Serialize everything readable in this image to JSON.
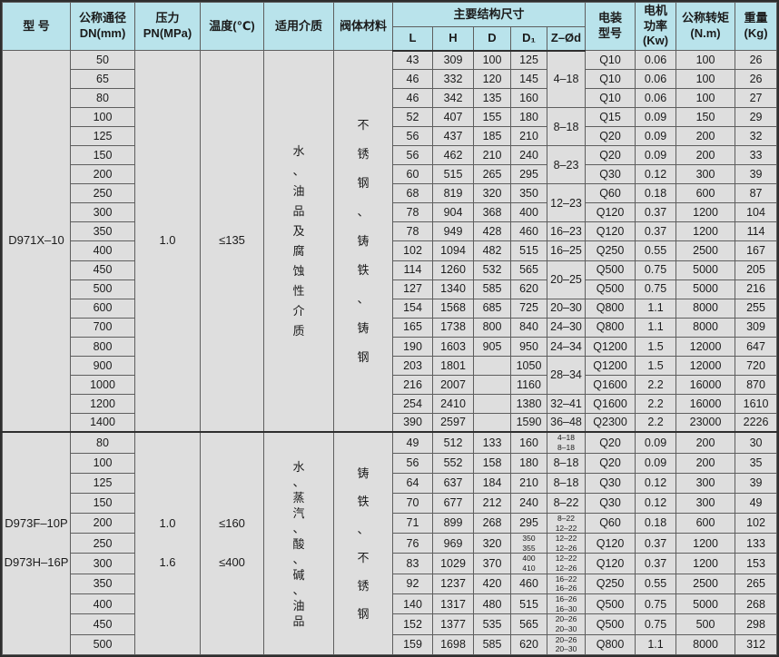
{
  "colors": {
    "header_bg": "#b9e3eb",
    "row_bg": "#dedede",
    "grid": "#5e5e5e",
    "frame": "#2e2e2e",
    "text": "#1b1b1b"
  },
  "table": {
    "header": {
      "model": "型  号",
      "dn": "公称通径\nDN(mm)",
      "pn": "压力\nPN(MPa)",
      "temp": "温度(℃)",
      "medium": "适用介质",
      "material": "阀体材料",
      "dims_group": "主要结构尺寸",
      "dims": [
        "L",
        "H",
        "D",
        "D₁",
        "Z–Ød"
      ],
      "actuator": "电装\n型号",
      "power": "电机\n功率\n(Kw)",
      "torque": "公称转矩\n(N.m)",
      "weight": "重量\n(Kg)"
    },
    "sections": [
      {
        "model": "D971X–10",
        "pressure": "1.0",
        "temperature": "≤135",
        "medium": "水、油品及腐蚀性介质",
        "material": "不锈钢、铸铁、铸钢",
        "rows": [
          {
            "dn": "50",
            "L": "43",
            "H": "309",
            "D": "100",
            "D1": "125",
            "zd": "4–18",
            "zd_span": 3,
            "act": "Q10",
            "kw": "0.06",
            "nm": "100",
            "kg": "26"
          },
          {
            "dn": "65",
            "L": "46",
            "H": "332",
            "D": "120",
            "D1": "145",
            "act": "Q10",
            "kw": "0.06",
            "nm": "100",
            "kg": "26"
          },
          {
            "dn": "80",
            "L": "46",
            "H": "342",
            "D": "135",
            "D1": "160",
            "act": "Q10",
            "kw": "0.06",
            "nm": "100",
            "kg": "27"
          },
          {
            "dn": "100",
            "L": "52",
            "H": "407",
            "D": "155",
            "D1": "180",
            "zd": "8–18",
            "zd_span": 2,
            "act": "Q15",
            "kw": "0.09",
            "nm": "150",
            "kg": "29"
          },
          {
            "dn": "125",
            "L": "56",
            "H": "437",
            "D": "185",
            "D1": "210",
            "act": "Q20",
            "kw": "0.09",
            "nm": "200",
            "kg": "32"
          },
          {
            "dn": "150",
            "L": "56",
            "H": "462",
            "D": "210",
            "D1": "240",
            "zd": "8–23",
            "zd_span": 2,
            "act": "Q20",
            "kw": "0.09",
            "nm": "200",
            "kg": "33"
          },
          {
            "dn": "200",
            "L": "60",
            "H": "515",
            "D": "265",
            "D1": "295",
            "act": "Q30",
            "kw": "0.12",
            "nm": "300",
            "kg": "39"
          },
          {
            "dn": "250",
            "L": "68",
            "H": "819",
            "D": "320",
            "D1": "350",
            "zd": "12–23",
            "zd_span": 2,
            "act": "Q60",
            "kw": "0.18",
            "nm": "600",
            "kg": "87"
          },
          {
            "dn": "300",
            "L": "78",
            "H": "904",
            "D": "368",
            "D1": "400",
            "act": "Q120",
            "kw": "0.37",
            "nm": "1200",
            "kg": "104"
          },
          {
            "dn": "350",
            "L": "78",
            "H": "949",
            "D": "428",
            "D1": "460",
            "zd": "16–23",
            "zd_span": 1,
            "act": "Q120",
            "kw": "0.37",
            "nm": "1200",
            "kg": "114"
          },
          {
            "dn": "400",
            "L": "102",
            "H": "1094",
            "D": "482",
            "D1": "515",
            "zd": "16–25",
            "zd_span": 1,
            "act": "Q250",
            "kw": "0.55",
            "nm": "2500",
            "kg": "167"
          },
          {
            "dn": "450",
            "L": "114",
            "H": "1260",
            "D": "532",
            "D1": "565",
            "zd": "20–25",
            "zd_span": 2,
            "act": "Q500",
            "kw": "0.75",
            "nm": "5000",
            "kg": "205"
          },
          {
            "dn": "500",
            "L": "127",
            "H": "1340",
            "D": "585",
            "D1": "620",
            "act": "Q500",
            "kw": "0.75",
            "nm": "5000",
            "kg": "216"
          },
          {
            "dn": "600",
            "L": "154",
            "H": "1568",
            "D": "685",
            "D1": "725",
            "zd": "20–30",
            "zd_span": 1,
            "act": "Q800",
            "kw": "1.1",
            "nm": "8000",
            "kg": "255"
          },
          {
            "dn": "700",
            "L": "165",
            "H": "1738",
            "D": "800",
            "D1": "840",
            "zd": "24–30",
            "zd_span": 1,
            "act": "Q800",
            "kw": "1.1",
            "nm": "8000",
            "kg": "309"
          },
          {
            "dn": "800",
            "L": "190",
            "H": "1603",
            "D": "905",
            "D1": "950",
            "zd": "24–34",
            "zd_span": 1,
            "act": "Q1200",
            "kw": "1.5",
            "nm": "12000",
            "kg": "647"
          },
          {
            "dn": "900",
            "L": "203",
            "H": "1801",
            "D": "",
            "D1": "1050",
            "zd": "28–34",
            "zd_span": 2,
            "act": "Q1200",
            "kw": "1.5",
            "nm": "12000",
            "kg": "720"
          },
          {
            "dn": "1000",
            "L": "216",
            "H": "2007",
            "D": "",
            "D1": "1160",
            "act": "Q1600",
            "kw": "2.2",
            "nm": "16000",
            "kg": "870"
          },
          {
            "dn": "1200",
            "L": "254",
            "H": "2410",
            "D": "",
            "D1": "1380",
            "zd": "32–41",
            "zd_span": 1,
            "act": "Q1600",
            "kw": "2.2",
            "nm": "16000",
            "kg": "1610"
          },
          {
            "dn": "1400",
            "L": "390",
            "H": "2597",
            "D": "",
            "D1": "1590",
            "zd": "36–48",
            "zd_span": 1,
            "act": "Q2300",
            "kw": "2.2",
            "nm": "23000",
            "kg": "2226"
          }
        ]
      },
      {
        "model": "D973F–10P\nD973H–16P",
        "pressure": "1.0\n1.6",
        "temperature": "≤160\n≤400",
        "medium": "水、蒸汽、酸、碱、油品",
        "material": "铸铁、不锈钢",
        "rows": [
          {
            "dn": "80",
            "L": "49",
            "H": "512",
            "D": "133",
            "D1": "160",
            "zd": "4–18\n8–18",
            "zd_span": 1,
            "act": "Q20",
            "kw": "0.09",
            "nm": "200",
            "kg": "30"
          },
          {
            "dn": "100",
            "L": "56",
            "H": "552",
            "D": "158",
            "D1": "180",
            "zd": "8–18",
            "zd_span": 1,
            "act": "Q20",
            "kw": "0.09",
            "nm": "200",
            "kg": "35"
          },
          {
            "dn": "125",
            "L": "64",
            "H": "637",
            "D": "184",
            "D1": "210",
            "zd": "8–18",
            "zd_span": 1,
            "act": "Q30",
            "kw": "0.12",
            "nm": "300",
            "kg": "39"
          },
          {
            "dn": "150",
            "L": "70",
            "H": "677",
            "D": "212",
            "D1": "240",
            "zd": "8–22",
            "zd_span": 1,
            "act": "Q30",
            "kw": "0.12",
            "nm": "300",
            "kg": "49"
          },
          {
            "dn": "200",
            "L": "71",
            "H": "899",
            "D": "268",
            "D1": "295",
            "zd": "8–22\n12–22",
            "zd_span": 1,
            "act": "Q60",
            "kw": "0.18",
            "nm": "600",
            "kg": "102"
          },
          {
            "dn": "250",
            "L": "76",
            "H": "969",
            "D": "320",
            "D1": "350\n355",
            "zd": "12–22\n12–26",
            "zd_span": 1,
            "act": "Q120",
            "kw": "0.37",
            "nm": "1200",
            "kg": "133"
          },
          {
            "dn": "300",
            "L": "83",
            "H": "1029",
            "D": "370",
            "D1": "400\n410",
            "zd": "12–22\n12–26",
            "zd_span": 1,
            "act": "Q120",
            "kw": "0.37",
            "nm": "1200",
            "kg": "153"
          },
          {
            "dn": "350",
            "L": "92",
            "H": "1237",
            "D": "420",
            "D1": "460",
            "zd": "16–22\n16–26",
            "zd_span": 1,
            "act": "Q250",
            "kw": "0.55",
            "nm": "2500",
            "kg": "265"
          },
          {
            "dn": "400",
            "L": "140",
            "H": "1317",
            "D": "480",
            "D1": "515",
            "zd": "16–26\n16–30",
            "zd_span": 1,
            "act": "Q500",
            "kw": "0.75",
            "nm": "5000",
            "kg": "268"
          },
          {
            "dn": "450",
            "L": "152",
            "H": "1377",
            "D": "535",
            "D1": "565",
            "zd": "20–26\n20–30",
            "zd_span": 1,
            "act": "Q500",
            "kw": "0.75",
            "nm": "500",
            "kg": "298"
          },
          {
            "dn": "500",
            "L": "159",
            "H": "1698",
            "D": "585",
            "D1": "620",
            "zd": "20–26\n20–30",
            "zd_span": 1,
            "act": "Q800",
            "kw": "1.1",
            "nm": "8000",
            "kg": "312"
          }
        ]
      }
    ]
  }
}
